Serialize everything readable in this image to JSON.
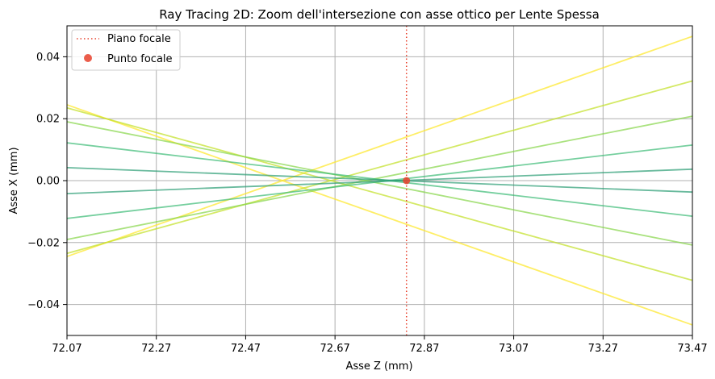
{
  "chart_data": {
    "type": "line",
    "title": "Ray Tracing 2D: Zoom dell'intersezione con asse ottico per Lente Spessa",
    "xlabel": "Asse Z (mm)",
    "ylabel": "Asse X (mm)",
    "xlim": [
      72.07,
      73.47
    ],
    "ylim": [
      -0.05,
      0.05
    ],
    "xticks": [
      "72.07",
      "72.27",
      "72.47",
      "72.67",
      "72.87",
      "73.07",
      "73.27",
      "73.47"
    ],
    "yticks": [
      "0.04",
      "0.02",
      "0.00",
      "−0.02",
      "−0.04"
    ],
    "grid": true,
    "legend_position": "top-left",
    "legend": [
      {
        "label": "Piano focale",
        "kind": "dotted-line",
        "color": "#e8412c"
      },
      {
        "label": "Punto focale",
        "kind": "marker",
        "color": "#e8412c"
      }
    ],
    "focal_plane_z": 72.83,
    "focal_point": {
      "z": 72.83,
      "x": 0.0
    },
    "rays": [
      {
        "x_start": 0.0245,
        "x_end": -0.0466,
        "color": "#fde725"
      },
      {
        "x_start": -0.0245,
        "x_end": 0.0466,
        "color": "#fde725"
      },
      {
        "x_start": 0.0235,
        "x_end": -0.0322,
        "color": "#c2df23"
      },
      {
        "x_start": -0.0235,
        "x_end": 0.0322,
        "color": "#c2df23"
      },
      {
        "x_start": 0.019,
        "x_end": -0.0208,
        "color": "#86d549"
      },
      {
        "x_start": -0.019,
        "x_end": 0.0208,
        "color": "#86d549"
      },
      {
        "x_start": 0.0122,
        "x_end": -0.0115,
        "color": "#3bbb75"
      },
      {
        "x_start": -0.0122,
        "x_end": 0.0115,
        "color": "#3bbb75"
      },
      {
        "x_start": 0.0042,
        "x_end": -0.0037,
        "color": "#2a9d74"
      },
      {
        "x_start": -0.0042,
        "x_end": 0.0037,
        "color": "#2a9d74"
      }
    ]
  }
}
